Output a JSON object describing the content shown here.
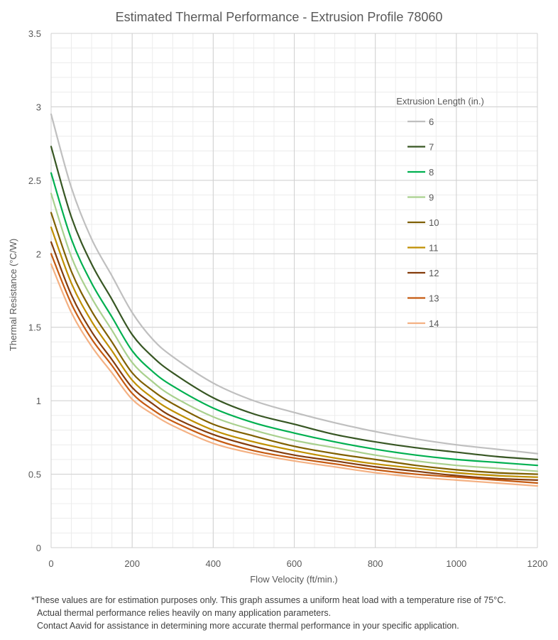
{
  "chart_data": {
    "type": "line",
    "title": "Estimated Thermal Performance - Extrusion Profile 78060",
    "xlabel": "Flow Velocity (ft/min.)",
    "ylabel": "Thermal Resistance (°C/W)",
    "xlim": [
      0,
      1200
    ],
    "ylim": [
      0,
      3.5
    ],
    "xticks": [
      0,
      200,
      400,
      600,
      800,
      1000,
      1200
    ],
    "yticks": [
      0,
      0.5,
      1,
      1.5,
      2,
      2.5,
      3,
      3.5
    ],
    "grid": true,
    "legend_title": "Extrusion Length (in.)",
    "legend_position": "right",
    "x": [
      0,
      50,
      100,
      150,
      200,
      250,
      300,
      400,
      500,
      600,
      700,
      800,
      900,
      1000,
      1100,
      1200
    ],
    "series": [
      {
        "name": "6",
        "color": "#bfbfbf",
        "values": [
          2.95,
          2.45,
          2.1,
          1.85,
          1.6,
          1.42,
          1.3,
          1.12,
          1.0,
          0.92,
          0.85,
          0.79,
          0.74,
          0.7,
          0.67,
          0.64
        ]
      },
      {
        "name": "7",
        "color": "#375623",
        "values": [
          2.73,
          2.25,
          1.93,
          1.69,
          1.45,
          1.3,
          1.19,
          1.02,
          0.91,
          0.84,
          0.77,
          0.72,
          0.68,
          0.65,
          0.62,
          0.6
        ]
      },
      {
        "name": "8",
        "color": "#00b050",
        "values": [
          2.55,
          2.1,
          1.8,
          1.57,
          1.34,
          1.2,
          1.1,
          0.95,
          0.85,
          0.78,
          0.72,
          0.67,
          0.63,
          0.6,
          0.58,
          0.56
        ]
      },
      {
        "name": "9",
        "color": "#a9d08e",
        "values": [
          2.41,
          1.98,
          1.7,
          1.48,
          1.26,
          1.13,
          1.03,
          0.89,
          0.8,
          0.73,
          0.68,
          0.63,
          0.59,
          0.56,
          0.54,
          0.52
        ]
      },
      {
        "name": "10",
        "color": "#7f6000",
        "values": [
          2.28,
          1.88,
          1.61,
          1.4,
          1.19,
          1.07,
          0.98,
          0.84,
          0.76,
          0.69,
          0.64,
          0.6,
          0.56,
          0.53,
          0.51,
          0.5
        ]
      },
      {
        "name": "11",
        "color": "#bf8f00",
        "values": [
          2.18,
          1.8,
          1.54,
          1.34,
          1.14,
          1.02,
          0.93,
          0.8,
          0.72,
          0.66,
          0.61,
          0.57,
          0.54,
          0.51,
          0.49,
          0.48
        ]
      },
      {
        "name": "12",
        "color": "#843c0c",
        "values": [
          2.08,
          1.72,
          1.47,
          1.28,
          1.09,
          0.98,
          0.89,
          0.77,
          0.69,
          0.63,
          0.59,
          0.55,
          0.52,
          0.49,
          0.47,
          0.46
        ]
      },
      {
        "name": "13",
        "color": "#c55a11",
        "values": [
          2.0,
          1.66,
          1.42,
          1.24,
          1.05,
          0.94,
          0.86,
          0.74,
          0.66,
          0.61,
          0.57,
          0.53,
          0.5,
          0.48,
          0.46,
          0.44
        ]
      },
      {
        "name": "14",
        "color": "#f4b183",
        "values": [
          1.93,
          1.6,
          1.37,
          1.19,
          1.01,
          0.91,
          0.83,
          0.71,
          0.64,
          0.59,
          0.55,
          0.51,
          0.48,
          0.46,
          0.44,
          0.42
        ]
      }
    ]
  },
  "footnote": {
    "line1": "*These values are for estimation purposes only. This graph assumes a uniform heat load with a temperature rise of 75°C.",
    "line2": "Actual thermal performance relies heavily on many application parameters.",
    "line3": "Contact Aavid for assistance in determining more accurate thermal performance in your specific application."
  }
}
